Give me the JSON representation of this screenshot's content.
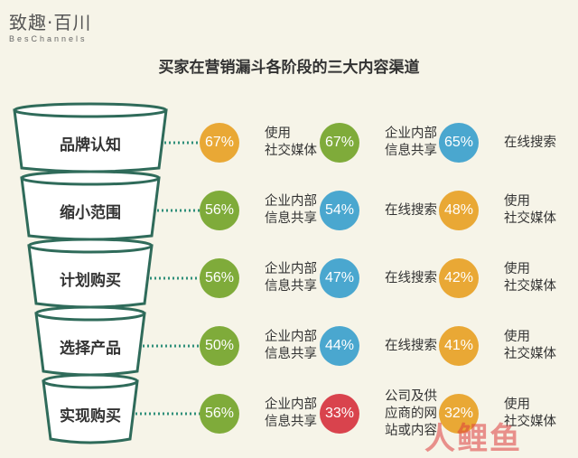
{
  "brand": {
    "name": "致趣·百川",
    "sub": "BesChannels"
  },
  "title": "买家在营销漏斗各阶段的三大内容渠道",
  "colors": {
    "orange": "#e9a835",
    "green": "#7fab3a",
    "blue": "#4aa7cf",
    "red": "#d9434d"
  },
  "stages": [
    {
      "label": "品牌认知",
      "channels": [
        {
          "pct": "67%",
          "color": "orange",
          "text": [
            "使用",
            "社交媒体"
          ]
        },
        {
          "pct": "67%",
          "color": "green",
          "text": [
            "企业内部",
            "信息共享"
          ]
        },
        {
          "pct": "65%",
          "color": "blue",
          "text": [
            "在线搜索"
          ]
        }
      ]
    },
    {
      "label": "缩小范围",
      "channels": [
        {
          "pct": "56%",
          "color": "green",
          "text": [
            "企业内部",
            "信息共享"
          ]
        },
        {
          "pct": "54%",
          "color": "blue",
          "text": [
            "在线搜索"
          ]
        },
        {
          "pct": "48%",
          "color": "orange",
          "text": [
            "使用",
            "社交媒体"
          ]
        }
      ]
    },
    {
      "label": "计划购买",
      "channels": [
        {
          "pct": "56%",
          "color": "green",
          "text": [
            "企业内部",
            "信息共享"
          ]
        },
        {
          "pct": "47%",
          "color": "blue",
          "text": [
            "在线搜索"
          ]
        },
        {
          "pct": "42%",
          "color": "orange",
          "text": [
            "使用",
            "社交媒体"
          ]
        }
      ]
    },
    {
      "label": "选择产品",
      "channels": [
        {
          "pct": "50%",
          "color": "green",
          "text": [
            "企业内部",
            "信息共享"
          ]
        },
        {
          "pct": "44%",
          "color": "blue",
          "text": [
            "在线搜索"
          ]
        },
        {
          "pct": "41%",
          "color": "orange",
          "text": [
            "使用",
            "社交媒体"
          ]
        }
      ]
    },
    {
      "label": "实现购买",
      "channels": [
        {
          "pct": "56%",
          "color": "green",
          "text": [
            "企业内部",
            "信息共享"
          ]
        },
        {
          "pct": "33%",
          "color": "red",
          "text": [
            "公司及供",
            "应商的网",
            "站或内容"
          ]
        },
        {
          "pct": "32%",
          "color": "orange",
          "text": [
            "使用",
            "社交媒体"
          ]
        }
      ]
    }
  ],
  "watermark": "人鲤鱼"
}
